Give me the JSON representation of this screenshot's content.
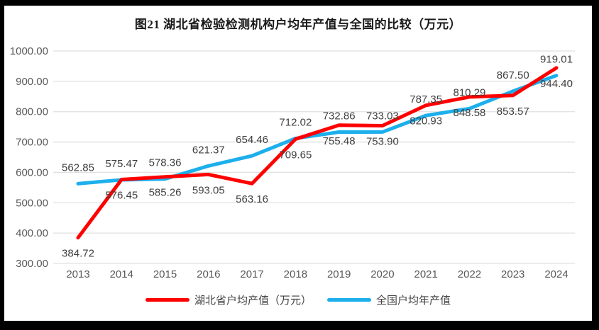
{
  "title": "图21  湖北省检验检测机构户均年产值与全国的比较（万元）",
  "colors": {
    "hubei_line": "#FF0000",
    "national_line": "#1CAFEC",
    "gridline": "#E0E0E0",
    "tick_text": "#595959",
    "data_label_text": "#404040",
    "title_text": "#1a1a1a",
    "frame": "#000000",
    "background": "#FFFFFF"
  },
  "legend": {
    "items": [
      {
        "label": "湖北省户均产值（万元）",
        "series": "hubei"
      },
      {
        "label": "全国户均年产值",
        "series": "national"
      }
    ]
  },
  "chart_data": {
    "type": "line",
    "title": "图21  湖北省检验检测机构户均年产值与全国的比较（万元）",
    "x": [
      "2013",
      "2014",
      "2015",
      "2016",
      "2017",
      "2018",
      "2019",
      "2020",
      "2021",
      "2022",
      "2023",
      "2024"
    ],
    "series": [
      {
        "name": "全国户均年产值",
        "key": "national",
        "color": "#1CAFEC",
        "label_position": "above",
        "values": [
          562.85,
          575.47,
          578.36,
          621.37,
          654.46,
          712.02,
          732.86,
          733.03,
          787.35,
          810.29,
          867.5,
          919.01
        ]
      },
      {
        "name": "湖北省户均产值（万元）",
        "key": "hubei",
        "color": "#FF0000",
        "label_position": "below",
        "values": [
          384.72,
          576.45,
          585.26,
          593.05,
          563.16,
          709.65,
          755.48,
          753.9,
          820.93,
          848.58,
          853.57,
          944.4
        ]
      }
    ],
    "ylim": [
      300,
      1000
    ],
    "yticks": [
      300,
      400,
      500,
      600,
      700,
      800,
      900,
      1000
    ],
    "ytick_decimals": 2,
    "data_label_decimals": 2,
    "grid": true,
    "legend_position": "bottom"
  }
}
